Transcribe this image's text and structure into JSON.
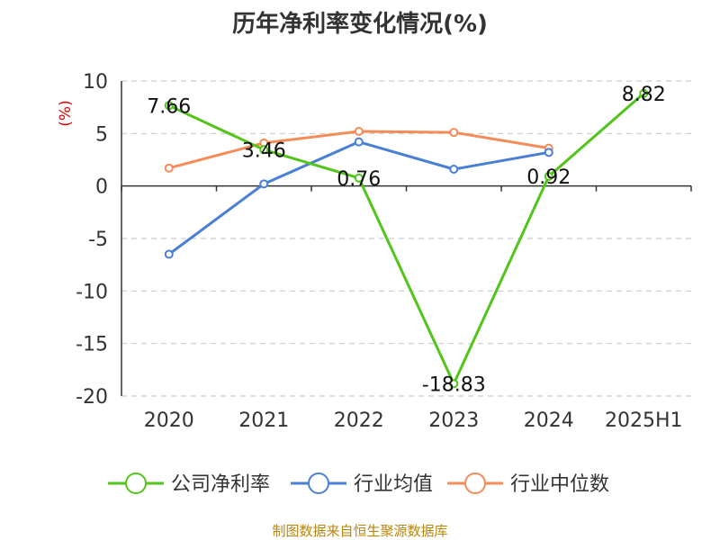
{
  "title": "历年净利率变化情况(%)",
  "source": "制图数据来自恒生聚源数据库",
  "chart_data": {
    "type": "line",
    "title": "历年净利率变化情况(%)",
    "ylabel": "(%)",
    "xlabel": "",
    "categories": [
      "2020",
      "2021",
      "2022",
      "2023",
      "2024",
      "2025H1"
    ],
    "ylim": [
      -20,
      10
    ],
    "yticks": [
      10,
      5,
      0,
      -5,
      -10,
      -15,
      -20
    ],
    "grid": true,
    "legend_position": "bottom",
    "series": [
      {
        "name": "公司净利率",
        "color": "#52c41a",
        "values": [
          7.66,
          3.46,
          0.76,
          -18.83,
          0.92,
          8.82
        ],
        "data_labels": [
          "7.66",
          "3.46",
          "0.76",
          "-18.83",
          "0.92",
          "8.82"
        ]
      },
      {
        "name": "行业均值",
        "color": "#4a7fd6",
        "values": [
          -6.5,
          0.2,
          4.2,
          1.6,
          3.2,
          null
        ]
      },
      {
        "name": "行业中位数",
        "color": "#f58c58",
        "values": [
          1.7,
          4.1,
          5.2,
          5.1,
          3.6,
          null
        ]
      }
    ]
  }
}
